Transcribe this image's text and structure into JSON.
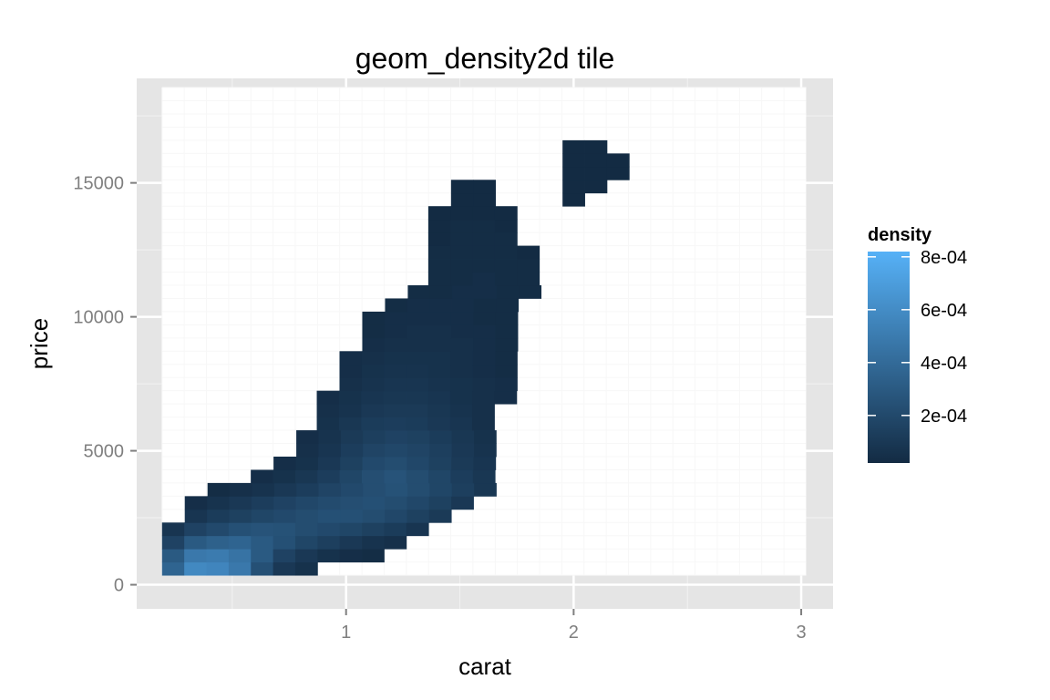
{
  "chart_data": {
    "type": "heatmap",
    "title": "geom_density2d tile",
    "xlabel": "carat",
    "ylabel": "price",
    "xlim": [
      0.08,
      3.14
    ],
    "ylim": [
      -900,
      18900
    ],
    "x_ticks": [
      1,
      2,
      3
    ],
    "y_ticks": [
      0,
      5000,
      10000,
      15000
    ],
    "grid": true,
    "tile_width": 0.0976,
    "tile_height": 492,
    "x_start": 0.24,
    "y_start": 600,
    "legend": {
      "title": "density",
      "position": "right",
      "range": [
        2e-05,
        0.00082
      ],
      "ticks": [
        0.0002,
        0.0004,
        0.0006,
        0.0008
      ],
      "tick_labels": [
        "2e-04",
        "4e-04",
        "6e-04",
        "8e-04"
      ],
      "color_low": "#132b43",
      "color_high": "#56b1f7"
    },
    "rows": [
      {
        "y": 600,
        "start": 0.24,
        "densities": [
          0.00036,
          0.00058,
          0.00056,
          0.00048,
          0.00024,
          0.0001,
          6e-05
        ]
      },
      {
        "y": 1092,
        "start": 0.24,
        "densities": [
          0.0003,
          0.00048,
          0.0005,
          0.00045,
          0.0003,
          0.00016,
          0.0001,
          6e-05,
          4e-05,
          3e-05
        ]
      },
      {
        "y": 1584,
        "start": 0.24,
        "densities": [
          0.00016,
          0.0003,
          0.00034,
          0.00036,
          0.0003,
          0.00024,
          0.00018,
          0.00014,
          0.0001,
          7e-05,
          5e-05
        ]
      },
      {
        "y": 2076,
        "start": 0.24,
        "densities": [
          8e-05,
          0.00016,
          0.0002,
          0.00024,
          0.00026,
          0.00025,
          0.00022,
          0.0002,
          0.00018,
          0.00015,
          0.00012,
          8e-05
        ]
      },
      {
        "y": 2568,
        "start": 0.34,
        "densities": [
          8e-05,
          0.00012,
          0.00015,
          0.00018,
          0.0002,
          0.00022,
          0.00024,
          0.00024,
          0.00022,
          0.00019,
          0.00015,
          0.00011
        ]
      },
      {
        "y": 3060,
        "start": 0.34,
        "densities": [
          4e-05,
          7e-05,
          0.0001,
          0.00013,
          0.00016,
          0.00019,
          0.00021,
          0.00023,
          0.00024,
          0.00022,
          0.00019,
          0.00015,
          0.0001
        ]
      },
      {
        "y": 3552,
        "start": 0.44,
        "densities": [
          3e-05,
          5e-05,
          7e-05,
          0.0001,
          0.00013,
          0.00017,
          0.0002,
          0.00023,
          0.00025,
          0.00022,
          0.00018,
          0.00014,
          9e-05
        ]
      },
      {
        "y": 4044,
        "start": 0.63,
        "densities": [
          4e-05,
          6e-05,
          9e-05,
          0.00013,
          0.00018,
          0.00023,
          0.00026,
          0.00022,
          0.00018,
          0.00013,
          9e-05
        ]
      },
      {
        "y": 4536,
        "start": 0.73,
        "densities": [
          4e-05,
          6e-05,
          0.0001,
          0.00015,
          0.0002,
          0.00022,
          0.00019,
          0.00015,
          0.00011,
          8e-05
        ]
      },
      {
        "y": 5028,
        "start": 0.83,
        "densities": [
          5e-05,
          8e-05,
          0.00013,
          0.00017,
          0.00019,
          0.00017,
          0.00014,
          0.0001,
          7e-05
        ]
      },
      {
        "y": 5520,
        "start": 0.83,
        "densities": [
          4e-05,
          7e-05,
          0.00011,
          0.00014,
          0.00016,
          0.00015,
          0.00012,
          9e-05,
          6e-05
        ]
      },
      {
        "y": 6012,
        "start": 0.92,
        "densities": [
          6e-05,
          9e-05,
          0.00012,
          0.00013,
          0.00012,
          0.0001,
          8e-05,
          5e-05
        ]
      },
      {
        "y": 6504,
        "start": 0.92,
        "densities": [
          5e-05,
          7e-05,
          0.0001,
          0.00011,
          0.00011,
          9e-05,
          7e-05,
          5e-05
        ]
      },
      {
        "y": 6996,
        "start": 0.92,
        "densities": [
          4e-05,
          6e-05,
          8e-05,
          9e-05,
          9e-05,
          8e-05,
          6e-05,
          5e-05,
          4e-05
        ]
      },
      {
        "y": 7488,
        "start": 1.02,
        "densities": [
          5e-05,
          7e-05,
          8e-05,
          8e-05,
          7e-05,
          6e-05,
          5e-05,
          4e-05
        ]
      },
      {
        "y": 7980,
        "start": 1.02,
        "densities": [
          4e-05,
          6e-05,
          7e-05,
          7e-05,
          6e-05,
          5e-05,
          4e-05,
          3e-05
        ]
      },
      {
        "y": 8472,
        "start": 1.02,
        "densities": [
          4e-05,
          5e-05,
          6e-05,
          6e-05,
          6e-05,
          5e-05,
          4e-05,
          3e-05
        ]
      },
      {
        "y": 8964,
        "start": 1.12,
        "densities": [
          4e-05,
          5e-05,
          5e-05,
          5e-05,
          5e-05,
          4e-05,
          3e-05
        ]
      },
      {
        "y": 9456,
        "start": 1.12,
        "densities": [
          3e-05,
          4e-05,
          5e-05,
          5e-05,
          4e-05,
          4e-05,
          3e-05
        ]
      },
      {
        "y": 9948,
        "start": 1.12,
        "densities": [
          3e-05,
          4e-05,
          4e-05,
          4e-05,
          4e-05,
          3e-05,
          3e-05
        ]
      },
      {
        "y": 10440,
        "start": 1.22,
        "densities": [
          3e-05,
          4e-05,
          4e-05,
          4e-05,
          3e-05,
          3e-05
        ]
      },
      {
        "y": 10932,
        "start": 1.32,
        "densities": [
          3e-05,
          3e-05,
          4e-05,
          4e-05,
          3e-05,
          3e-05
        ]
      },
      {
        "y": 11424,
        "start": 1.41,
        "densities": [
          3e-05,
          3e-05,
          4e-05,
          3e-05,
          3e-05
        ]
      },
      {
        "y": 11916,
        "start": 1.41,
        "densities": [
          3e-05,
          3e-05,
          3e-05,
          3e-05,
          3e-05
        ]
      },
      {
        "y": 12408,
        "start": 1.41,
        "densities": [
          3e-05,
          3e-05,
          3e-05,
          3e-05,
          2e-05
        ]
      },
      {
        "y": 12900,
        "start": 1.41,
        "densities": [
          2e-05,
          3e-05,
          3e-05,
          3e-05
        ]
      },
      {
        "y": 13392,
        "start": 1.41,
        "densities": [
          2e-05,
          3e-05,
          3e-05,
          2e-05
        ]
      },
      {
        "y": 13884,
        "start": 1.41,
        "densities": [
          2e-05,
          2e-05,
          2e-05,
          2e-05
        ]
      },
      {
        "y": 14376,
        "start": 1.51,
        "densities": [
          2e-05,
          2e-05
        ]
      },
      {
        "y": 14376,
        "start": 2.0,
        "densities": [
          2e-05
        ]
      },
      {
        "y": 14868,
        "start": 1.51,
        "densities": [
          2e-05,
          2e-05
        ]
      },
      {
        "y": 14868,
        "start": 2.0,
        "densities": [
          2e-05,
          2e-05
        ]
      },
      {
        "y": 15360,
        "start": 2.0,
        "densities": [
          2e-05,
          2e-05,
          2e-05
        ]
      },
      {
        "y": 15852,
        "start": 2.0,
        "densities": [
          2e-05,
          2e-05,
          2e-05
        ]
      },
      {
        "y": 16344,
        "start": 2.0,
        "densities": [
          2e-05,
          2e-05
        ]
      }
    ]
  }
}
